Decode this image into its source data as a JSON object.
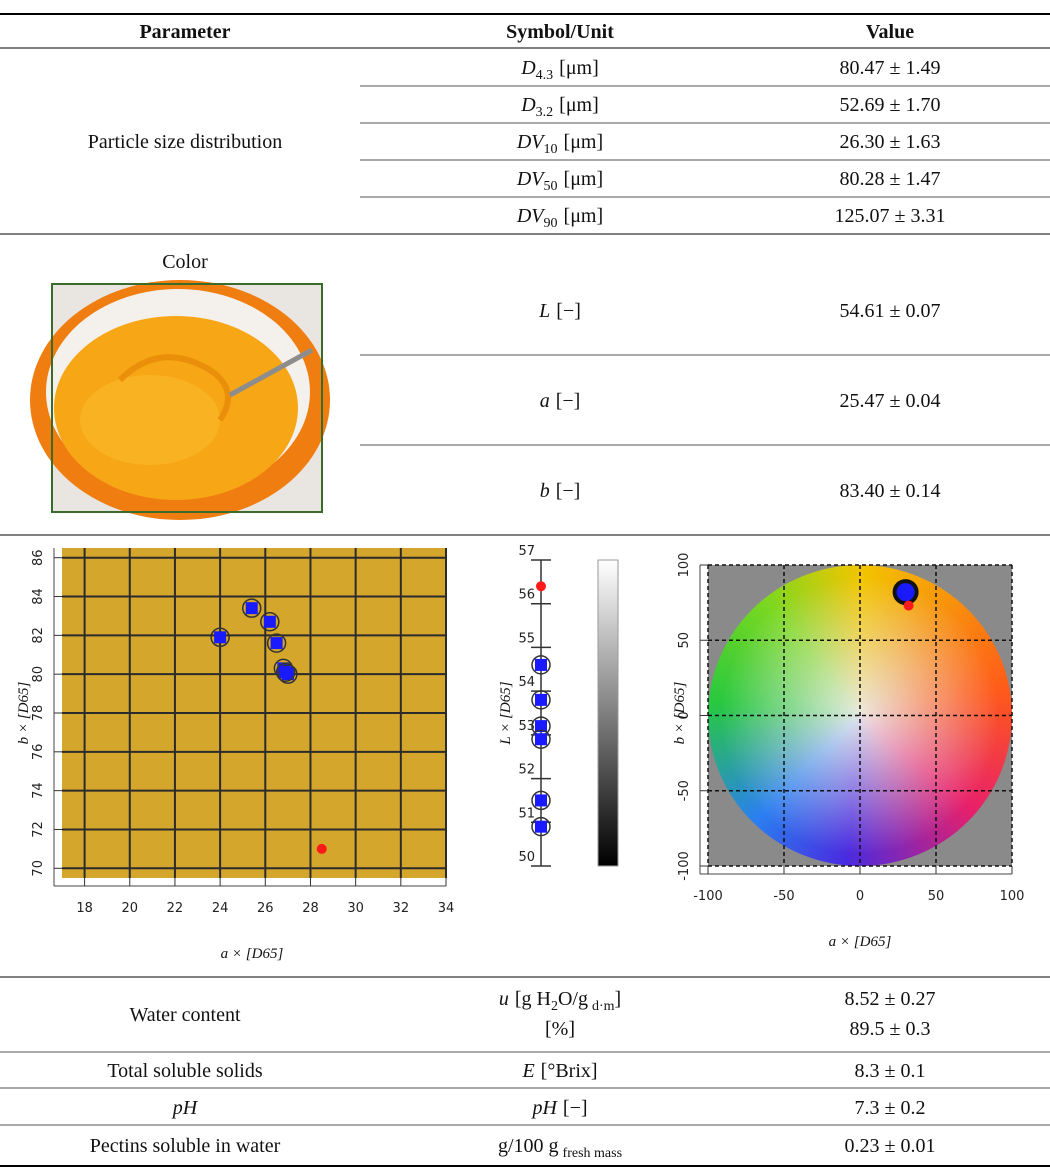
{
  "table": {
    "header": [
      "Parameter",
      "Symbol/Unit",
      "Value"
    ],
    "particle_size": {
      "parameter": "Particle size distribution",
      "rows": [
        {
          "symbol": "D",
          "sub": "4.3",
          "unit": "[μm]",
          "value": "80.47 ± 1.49"
        },
        {
          "symbol": "D",
          "sub": "3.2",
          "unit": "[μm]",
          "value": "52.69 ± 1.70"
        },
        {
          "symbol": "DV",
          "sub": "10",
          "unit": "[μm]",
          "value": "26.30 ± 1.63"
        },
        {
          "symbol": "DV",
          "sub": "50",
          "unit": "[μm]",
          "value": "80.28 ± 1.47"
        },
        {
          "symbol": "DV",
          "sub": "90",
          "unit": "[μm]",
          "value": "125.07 ± 3.31"
        }
      ]
    },
    "color": {
      "parameter": "Color",
      "rows": [
        {
          "symbol": "L",
          "unit": "[−]",
          "value": "54.61 ± 0.07"
        },
        {
          "symbol": "a",
          "unit": "[−]",
          "value": "25.47 ± 0.04"
        },
        {
          "symbol": "b",
          "unit": "[−]",
          "value": "83.40 ± 0.14"
        }
      ]
    },
    "water_content": {
      "parameter": "Water content",
      "symbol": "u",
      "unit": [
        "[g H",
        "2",
        "O/g",
        "d·m",
        "]"
      ],
      "unit_2": "[%]",
      "values": [
        "8.52 ± 0.27",
        "89.5 ± 0.3"
      ]
    },
    "total_soluble_solids": {
      "parameter": "Total soluble solids",
      "symbol": "E",
      "unit": "[°Brix]",
      "value": "8.3 ± 0.1"
    },
    "ph": {
      "parameter": "pH",
      "symbol": "pH",
      "unit": "[−]",
      "value": "7.3 ± 0.2"
    },
    "pectins": {
      "parameter": "Pectins soluble in water",
      "unit": "g/100 g",
      "sub": "fresh mass",
      "value": "0.23 ± 0.01"
    }
  },
  "chart_data": [
    {
      "type": "scatter",
      "x_label": "a × [D65]",
      "y_label": "b × [D65]",
      "xlim": [
        17,
        34
      ],
      "ylim": [
        69.5,
        86.5
      ],
      "xticks": [
        18,
        20,
        22,
        24,
        26,
        28,
        30,
        32,
        34
      ],
      "yticks": [
        70,
        72,
        74,
        76,
        78,
        80,
        82,
        84,
        86
      ],
      "grid": "solid",
      "plot_color": "#d4a62c",
      "series": [
        {
          "color": "#1a1aff",
          "marker": "square",
          "x": [
            24,
            25.4,
            26.2,
            26.5,
            26.8,
            27.0,
            26.9
          ],
          "values": [
            81.9,
            83.4,
            82.7,
            81.6,
            80.3,
            80.0,
            80.1
          ]
        },
        {
          "color": "#ff1a1a",
          "marker": "circle",
          "x": [
            28.5
          ],
          "values": [
            71.0
          ]
        }
      ]
    },
    {
      "type": "dot",
      "y_label": "L × [D65]",
      "ylim": [
        50,
        57
      ],
      "yticks": [
        50,
        51,
        52,
        53,
        54,
        55,
        56,
        57
      ],
      "series": [
        {
          "color": "#1a1aff",
          "marker": "square",
          "values": [
            54.6,
            53.8,
            53.2,
            52.9,
            51.5,
            50.9
          ]
        },
        {
          "color": "#ff1a1a",
          "marker": "circle",
          "values": [
            56.4
          ]
        }
      ]
    },
    {
      "type": "scatter",
      "x_label": "a × [D65]",
      "y_label": "b × [D65]",
      "xlim": [
        -100,
        100
      ],
      "ylim": [
        -100,
        100
      ],
      "xticks": [
        -100,
        -50,
        0,
        50,
        100
      ],
      "yticks": [
        -100,
        -50,
        0,
        50,
        100
      ],
      "grid": "dashed",
      "plot_color": "#8a8a8a",
      "series": [
        {
          "color": "#1a1aff",
          "marker": "circle-large",
          "x": [
            30
          ],
          "values": [
            82
          ]
        },
        {
          "color": "#ff1a1a",
          "marker": "circle",
          "x": [
            32
          ],
          "values": [
            73
          ]
        }
      ]
    }
  ]
}
